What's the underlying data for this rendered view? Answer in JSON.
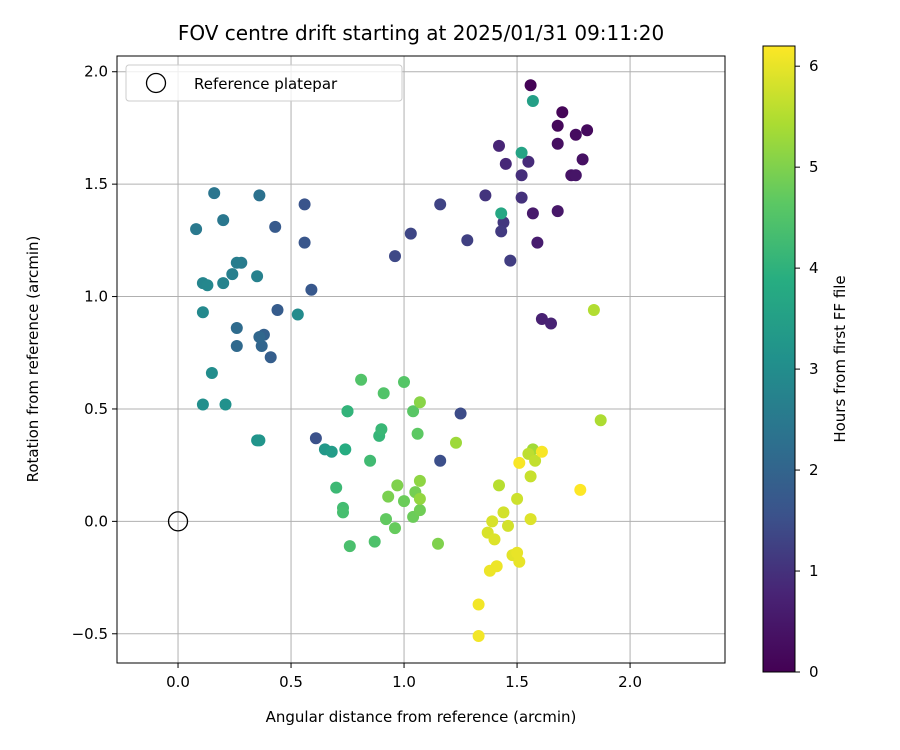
{
  "chart_data": {
    "type": "scatter",
    "title": "FOV centre drift starting at 2025/01/31 09:11:20",
    "xlabel": "Angular distance from reference (arcmin)",
    "ylabel": "Rotation from reference (arcmin)",
    "xlim": [
      -0.27,
      2.42
    ],
    "ylim": [
      -0.63,
      2.07
    ],
    "xticks": [
      0.0,
      0.5,
      1.0,
      1.5,
      2.0
    ],
    "xtick_labels": [
      "0.0",
      "0.5",
      "1.0",
      "1.5",
      "2.0"
    ],
    "yticks": [
      -0.5,
      0.0,
      0.5,
      1.0,
      1.5,
      2.0
    ],
    "ytick_labels": [
      "−0.5",
      "0.0",
      "0.5",
      "1.0",
      "1.5",
      "2.0"
    ],
    "grid": true,
    "legend": {
      "placement": "top-left",
      "entries": [
        "Reference platepar"
      ]
    },
    "reference_point": {
      "x": 0.0,
      "y": 0.0
    },
    "colorbar": {
      "label": "Hours from first FF file",
      "colormap": "viridis",
      "range": [
        0,
        6.2
      ],
      "ticks": [
        0,
        1,
        2,
        3,
        4,
        5,
        6
      ],
      "tick_labels": [
        "0",
        "1",
        "2",
        "3",
        "4",
        "5",
        "6"
      ]
    },
    "points": [
      {
        "x": 1.56,
        "y": 1.94,
        "h": 0.05
      },
      {
        "x": 1.7,
        "y": 1.82,
        "h": 0.1
      },
      {
        "x": 1.68,
        "y": 1.76,
        "h": 0.15
      },
      {
        "x": 1.81,
        "y": 1.74,
        "h": 0.2
      },
      {
        "x": 1.76,
        "y": 1.72,
        "h": 0.25
      },
      {
        "x": 1.68,
        "y": 1.68,
        "h": 0.3
      },
      {
        "x": 1.79,
        "y": 1.61,
        "h": 0.35
      },
      {
        "x": 1.74,
        "y": 1.54,
        "h": 0.4
      },
      {
        "x": 1.76,
        "y": 1.54,
        "h": 0.45
      },
      {
        "x": 1.68,
        "y": 1.38,
        "h": 0.5
      },
      {
        "x": 1.57,
        "y": 1.37,
        "h": 0.55
      },
      {
        "x": 1.59,
        "y": 1.24,
        "h": 0.6
      },
      {
        "x": 1.61,
        "y": 0.9,
        "h": 0.7
      },
      {
        "x": 1.65,
        "y": 0.88,
        "h": 0.75
      },
      {
        "x": 1.42,
        "y": 1.67,
        "h": 0.8
      },
      {
        "x": 1.45,
        "y": 1.59,
        "h": 0.85
      },
      {
        "x": 1.55,
        "y": 1.6,
        "h": 0.9
      },
      {
        "x": 1.52,
        "y": 1.54,
        "h": 0.95
      },
      {
        "x": 1.52,
        "y": 1.44,
        "h": 1.0
      },
      {
        "x": 1.36,
        "y": 1.45,
        "h": 1.05
      },
      {
        "x": 1.44,
        "y": 1.33,
        "h": 1.1
      },
      {
        "x": 1.43,
        "y": 1.29,
        "h": 1.15
      },
      {
        "x": 1.47,
        "y": 1.16,
        "h": 1.2
      },
      {
        "x": 1.28,
        "y": 1.25,
        "h": 1.25
      },
      {
        "x": 1.16,
        "y": 1.41,
        "h": 1.3
      },
      {
        "x": 1.03,
        "y": 1.28,
        "h": 1.35
      },
      {
        "x": 0.96,
        "y": 1.18,
        "h": 1.4
      },
      {
        "x": 1.25,
        "y": 0.48,
        "h": 1.45
      },
      {
        "x": 1.16,
        "y": 0.27,
        "h": 1.5
      },
      {
        "x": 0.61,
        "y": 0.37,
        "h": 1.55
      },
      {
        "x": 0.56,
        "y": 1.41,
        "h": 1.6
      },
      {
        "x": 0.56,
        "y": 1.24,
        "h": 1.65
      },
      {
        "x": 0.59,
        "y": 1.03,
        "h": 1.7
      },
      {
        "x": 0.43,
        "y": 1.31,
        "h": 1.75
      },
      {
        "x": 0.44,
        "y": 0.94,
        "h": 1.8
      },
      {
        "x": 0.41,
        "y": 0.73,
        "h": 1.85
      },
      {
        "x": 0.38,
        "y": 0.83,
        "h": 1.9
      },
      {
        "x": 0.37,
        "y": 0.78,
        "h": 2.0
      },
      {
        "x": 0.36,
        "y": 0.82,
        "h": 2.05
      },
      {
        "x": 0.26,
        "y": 0.78,
        "h": 2.1
      },
      {
        "x": 0.26,
        "y": 0.86,
        "h": 2.15
      },
      {
        "x": 0.36,
        "y": 1.45,
        "h": 2.3
      },
      {
        "x": 0.16,
        "y": 1.46,
        "h": 2.4
      },
      {
        "x": 0.2,
        "y": 1.34,
        "h": 2.45
      },
      {
        "x": 0.08,
        "y": 1.3,
        "h": 2.5
      },
      {
        "x": 0.28,
        "y": 1.15,
        "h": 2.55
      },
      {
        "x": 0.26,
        "y": 1.15,
        "h": 2.6
      },
      {
        "x": 0.24,
        "y": 1.1,
        "h": 2.65
      },
      {
        "x": 0.35,
        "y": 1.09,
        "h": 2.7
      },
      {
        "x": 0.2,
        "y": 1.06,
        "h": 2.75
      },
      {
        "x": 0.11,
        "y": 1.06,
        "h": 2.8
      },
      {
        "x": 0.13,
        "y": 1.05,
        "h": 2.85
      },
      {
        "x": 0.11,
        "y": 0.93,
        "h": 2.9
      },
      {
        "x": 0.53,
        "y": 0.92,
        "h": 2.95
      },
      {
        "x": 0.15,
        "y": 0.66,
        "h": 3.0
      },
      {
        "x": 0.11,
        "y": 0.52,
        "h": 3.05
      },
      {
        "x": 0.21,
        "y": 0.52,
        "h": 3.1
      },
      {
        "x": 0.35,
        "y": 0.36,
        "h": 3.15
      },
      {
        "x": 0.36,
        "y": 0.36,
        "h": 3.2
      },
      {
        "x": 0.65,
        "y": 0.32,
        "h": 3.3
      },
      {
        "x": 0.68,
        "y": 0.31,
        "h": 3.4
      },
      {
        "x": 1.57,
        "y": 1.87,
        "h": 3.5
      },
      {
        "x": 1.52,
        "y": 1.64,
        "h": 3.6
      },
      {
        "x": 1.43,
        "y": 1.37,
        "h": 3.7
      },
      {
        "x": 0.74,
        "y": 0.32,
        "h": 3.85
      },
      {
        "x": 0.75,
        "y": 0.49,
        "h": 4.0
      },
      {
        "x": 0.75,
        "y": 0.49,
        "h": 4.05
      },
      {
        "x": 0.89,
        "y": 0.38,
        "h": 4.1
      },
      {
        "x": 0.9,
        "y": 0.41,
        "h": 4.15
      },
      {
        "x": 0.7,
        "y": 0.15,
        "h": 4.2
      },
      {
        "x": 0.85,
        "y": 0.27,
        "h": 4.25
      },
      {
        "x": 0.73,
        "y": 0.06,
        "h": 4.3
      },
      {
        "x": 0.73,
        "y": 0.04,
        "h": 4.35
      },
      {
        "x": 0.76,
        "y": -0.11,
        "h": 4.4
      },
      {
        "x": 0.87,
        "y": -0.09,
        "h": 4.45
      },
      {
        "x": 0.81,
        "y": 0.63,
        "h": 4.5
      },
      {
        "x": 0.91,
        "y": 0.57,
        "h": 4.5
      },
      {
        "x": 1.0,
        "y": 0.62,
        "h": 4.55
      },
      {
        "x": 1.04,
        "y": 0.49,
        "h": 4.6
      },
      {
        "x": 1.06,
        "y": 0.39,
        "h": 4.65
      },
      {
        "x": 0.92,
        "y": 0.01,
        "h": 4.7
      },
      {
        "x": 0.96,
        "y": -0.03,
        "h": 4.75
      },
      {
        "x": 1.0,
        "y": 0.09,
        "h": 4.8
      },
      {
        "x": 1.04,
        "y": 0.02,
        "h": 4.8
      },
      {
        "x": 1.07,
        "y": 0.05,
        "h": 4.85
      },
      {
        "x": 1.05,
        "y": 0.13,
        "h": 4.9
      },
      {
        "x": 0.93,
        "y": 0.11,
        "h": 4.95
      },
      {
        "x": 0.97,
        "y": 0.16,
        "h": 5.0
      },
      {
        "x": 1.15,
        "y": -0.1,
        "h": 5.0
      },
      {
        "x": 1.07,
        "y": 0.53,
        "h": 5.1
      },
      {
        "x": 1.07,
        "y": 0.18,
        "h": 5.15
      },
      {
        "x": 1.07,
        "y": 0.1,
        "h": 5.2
      },
      {
        "x": 1.23,
        "y": 0.35,
        "h": 5.3
      },
      {
        "x": 1.57,
        "y": 0.32,
        "h": 5.35
      },
      {
        "x": 1.87,
        "y": 0.45,
        "h": 5.45
      },
      {
        "x": 1.84,
        "y": 0.94,
        "h": 5.5
      },
      {
        "x": 1.42,
        "y": 0.16,
        "h": 5.55
      },
      {
        "x": 1.55,
        "y": 0.3,
        "h": 5.6
      },
      {
        "x": 1.58,
        "y": 0.27,
        "h": 5.65
      },
      {
        "x": 1.56,
        "y": 0.2,
        "h": 5.7
      },
      {
        "x": 1.5,
        "y": 0.1,
        "h": 5.75
      },
      {
        "x": 1.44,
        "y": 0.04,
        "h": 5.8
      },
      {
        "x": 1.46,
        "y": -0.02,
        "h": 5.8
      },
      {
        "x": 1.39,
        "y": 0.0,
        "h": 5.85
      },
      {
        "x": 1.37,
        "y": -0.05,
        "h": 5.85
      },
      {
        "x": 1.4,
        "y": -0.08,
        "h": 5.9
      },
      {
        "x": 1.56,
        "y": 0.01,
        "h": 5.9
      },
      {
        "x": 1.48,
        "y": -0.15,
        "h": 5.95
      },
      {
        "x": 1.5,
        "y": -0.14,
        "h": 6.0
      },
      {
        "x": 1.51,
        "y": -0.18,
        "h": 6.0
      },
      {
        "x": 1.41,
        "y": -0.2,
        "h": 6.05
      },
      {
        "x": 1.38,
        "y": -0.22,
        "h": 6.05
      },
      {
        "x": 1.33,
        "y": -0.37,
        "h": 6.1
      },
      {
        "x": 1.33,
        "y": -0.51,
        "h": 6.1
      },
      {
        "x": 1.51,
        "y": 0.26,
        "h": 6.15
      },
      {
        "x": 1.61,
        "y": 0.31,
        "h": 6.15
      },
      {
        "x": 1.78,
        "y": 0.14,
        "h": 6.2
      }
    ]
  }
}
